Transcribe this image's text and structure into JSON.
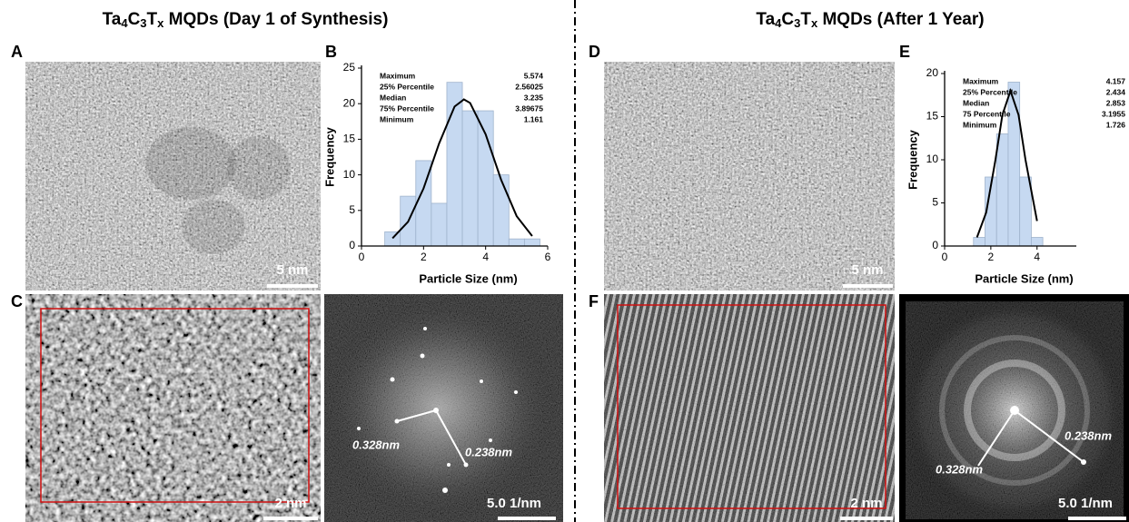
{
  "panels": {
    "left_title": [
      {
        "text": "Ta"
      },
      {
        "sub": "4"
      },
      {
        "text": "C"
      },
      {
        "sub": "3"
      },
      {
        "text": "T"
      },
      {
        "sub": "x"
      },
      {
        "text": " MQDs (Day 1 of Synthesis)"
      }
    ],
    "right_title": [
      {
        "text": "Ta"
      },
      {
        "sub": "4"
      },
      {
        "text": "C"
      },
      {
        "sub": "3"
      },
      {
        "text": "T"
      },
      {
        "sub": "x"
      },
      {
        "text": " MQDs (After 1 Year)"
      }
    ],
    "labels": [
      "A",
      "B",
      "C",
      "D",
      "E",
      "F"
    ]
  },
  "scale_bars": [
    "5 nm",
    "2 nm",
    "5.0 1/nm",
    "5 nm",
    "2 nm",
    "5.0 1/nm"
  ],
  "fft_labels": [
    "0.328nm",
    "0.238nm",
    "0.328nm",
    "0.238nm"
  ],
  "chart_data": [
    {
      "type": "histogram",
      "bins": [
        0.75,
        1.25,
        1.75,
        2.25,
        2.75,
        3.25,
        3.75,
        4.25,
        4.75,
        5.25,
        5.75
      ],
      "values": [
        2,
        7,
        12,
        6,
        23,
        19,
        19,
        10,
        1,
        1
      ],
      "color": "#c6d9f1",
      "xlim": [
        0,
        6
      ],
      "ylim": [
        0,
        25
      ],
      "xticks": [
        0,
        2,
        4,
        6
      ],
      "yticks": [
        0,
        5,
        10,
        15,
        20,
        25
      ],
      "xlabel": "Particle Size (nm)",
      "ylabel": "Frequency",
      "stats": [
        [
          "Maximum",
          5.574
        ],
        [
          "25% Percentile",
          2.56025
        ],
        [
          "Median",
          3.235
        ],
        [
          "75% Percentile",
          3.89675
        ],
        [
          "Minimum",
          1.161
        ]
      ],
      "fit": {
        "x": [
          1.0,
          1.5,
          2.0,
          2.5,
          3.0,
          3.3,
          3.5,
          4.0,
          4.5,
          5.0,
          5.5
        ],
        "values": [
          1.1,
          3.4,
          8.1,
          14.4,
          19.6,
          20.6,
          20.1,
          15.7,
          9.3,
          4.2,
          1.4
        ],
        "color": "#000000"
      }
    },
    {
      "type": "histogram",
      "bins": [
        1.25,
        1.75,
        2.25,
        2.75,
        3.25,
        3.75,
        4.25
      ],
      "values": [
        1,
        8,
        13,
        19,
        8,
        1
      ],
      "color": "#c6d9f1",
      "xlim": [
        0,
        5.7
      ],
      "ylim": [
        0,
        20
      ],
      "xticks": [
        0,
        2,
        4
      ],
      "yticks": [
        0,
        5,
        10,
        15,
        20
      ],
      "xlabel": "Particle Size (nm)",
      "ylabel": "Frequency",
      "stats": [
        [
          "Maximum",
          4.157
        ],
        [
          "25% Percentile",
          2.434
        ],
        [
          "Median",
          2.853
        ],
        [
          "75 Percentile",
          3.1955
        ],
        [
          "Minimum",
          1.726
        ]
      ],
      "fit": {
        "x": [
          1.4,
          1.8,
          2.2,
          2.5,
          2.85,
          3.2,
          3.5,
          4.0
        ],
        "values": [
          1.0,
          3.9,
          10.0,
          15.2,
          18.0,
          15.2,
          10.0,
          2.9
        ],
        "color": "#000000"
      }
    }
  ]
}
